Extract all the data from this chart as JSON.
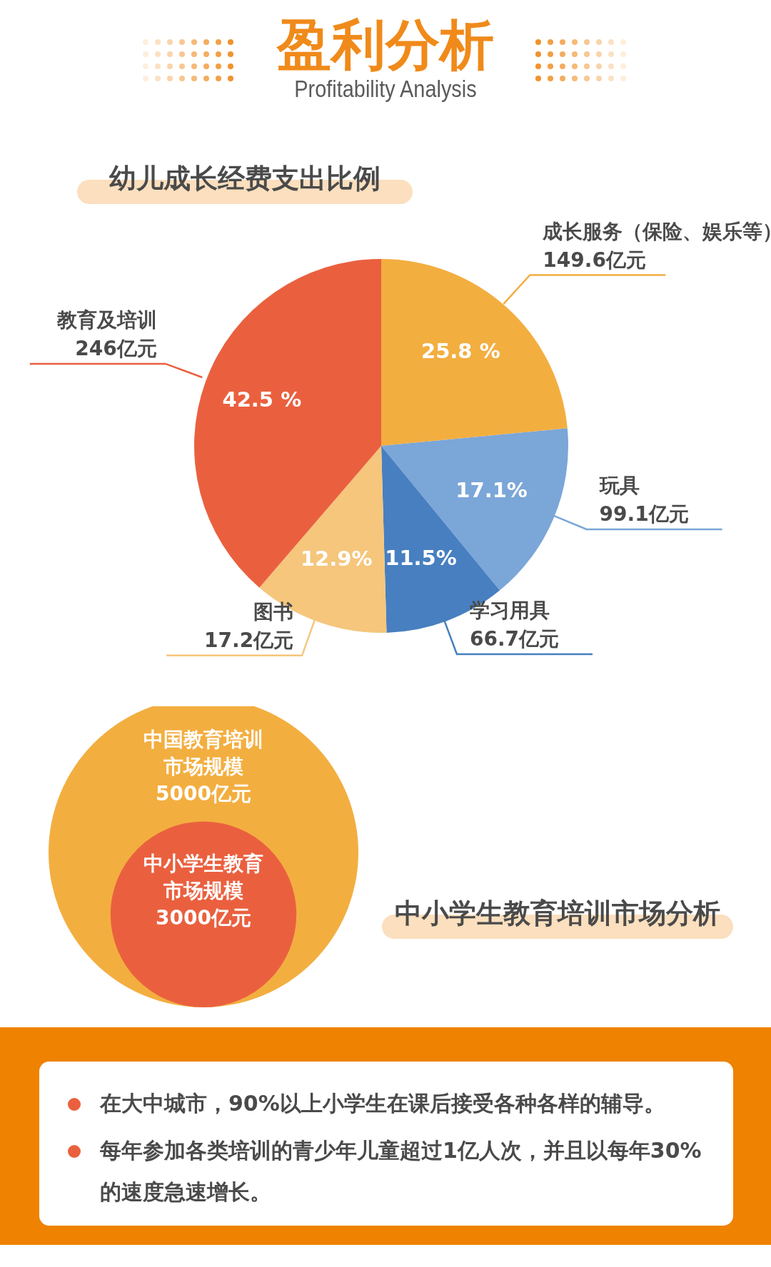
{
  "chart_data": [
    {
      "type": "other",
      "title": "盈利分析",
      "subtitle": "Profitability Analysis"
    },
    {
      "type": "pie",
      "title": "幼儿成长经费支出比例",
      "categories": [
        "成长服务（保险、娱乐等）",
        "玩具",
        "学习用具",
        "图书",
        "教育及培训"
      ],
      "values": [
        25.8,
        17.1,
        11.5,
        12.9,
        42.5
      ],
      "colors": [
        "#f3ae40",
        "#7ba6d8",
        "#477fc0",
        "#f5c67c",
        "#ea603f"
      ],
      "value_labels": [
        "25.8 %",
        "17.1%",
        "11.5%",
        "12.9%",
        "42.5 %"
      ],
      "annotations": [
        "149.6亿元",
        "99.1亿元",
        "66.7亿元",
        "17.2亿元",
        "246亿元"
      ]
    },
    {
      "type": "other",
      "title": "中小学生教育培训市场分析",
      "categories": [
        "中国教育培训市场规模",
        "中小学生教育市场规模"
      ],
      "values": [
        5000,
        3000
      ],
      "value_labels": [
        "5000亿元",
        "3000亿元"
      ],
      "colors": [
        "#f3ae40",
        "#ea603f"
      ]
    },
    {
      "type": "other",
      "annotations": [
        "在大中城市，90%以上小学生在课后接受各种各样的辅导。",
        "每年参加各类培训的青少年儿童超过1亿人次，并且以每年30%的速度急速增长。"
      ]
    }
  ]
}
